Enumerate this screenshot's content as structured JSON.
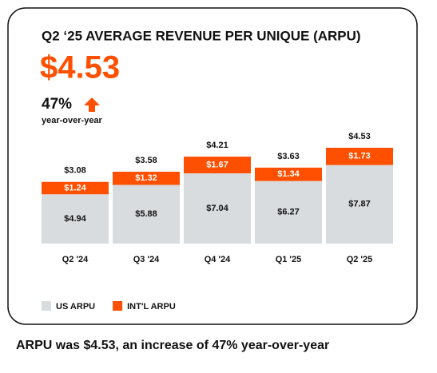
{
  "chart_data": {
    "type": "stacked_bar",
    "title": "Q2 ‘25 AVERAGE REVENUE PER UNIQUE (ARPU)",
    "headline": "$4.53",
    "change": "47%",
    "change_label": "year-over-year",
    "caption": "ARPU was $4.53, an increase of 47% year-over-year",
    "categories": [
      "Q2 '24",
      "Q3 '24",
      "Q4 '24",
      "Q1 '25",
      "Q2 '25"
    ],
    "series": [
      {
        "name": "US ARPU",
        "color": "#d9dcdf",
        "values": [
          4.94,
          5.88,
          7.04,
          6.27,
          7.87
        ],
        "value_labels": [
          "$4.94",
          "$5.88",
          "$7.04",
          "$6.27",
          "$7.87"
        ]
      },
      {
        "name": "INT'L ARPU",
        "color": "#ff4f00",
        "values": [
          1.24,
          1.32,
          1.67,
          1.34,
          1.73
        ],
        "value_labels": [
          "$1.24",
          "$1.32",
          "$1.67",
          "$1.34",
          "$1.73"
        ]
      }
    ],
    "totals": {
      "values": [
        3.08,
        3.58,
        4.21,
        3.63,
        4.53
      ],
      "value_labels": [
        "$3.08",
        "$3.58",
        "$4.21",
        "$3.63",
        "$4.53"
      ]
    }
  }
}
